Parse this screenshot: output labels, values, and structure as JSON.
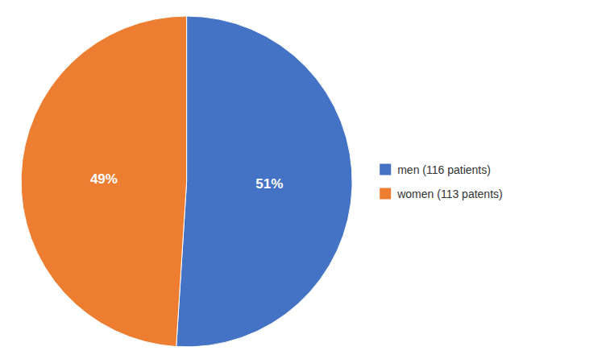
{
  "chart_data": {
    "type": "pie",
    "categories": [
      "men (116 patients)",
      "women (113 patents)"
    ],
    "values": [
      51,
      49
    ],
    "value_labels": [
      "51%",
      "49%"
    ],
    "colors": [
      "#4472C4",
      "#ED7D31"
    ],
    "data_labels": true,
    "legend": "right"
  }
}
